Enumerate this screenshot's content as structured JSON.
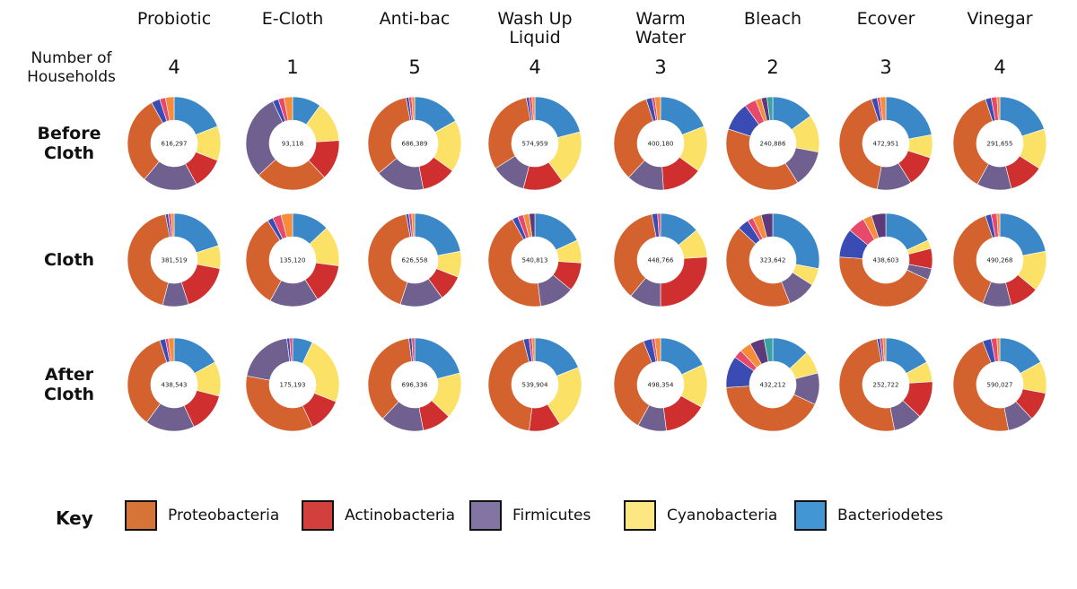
{
  "figure": {
    "households_label": "Number of Households",
    "key_title": "Key"
  },
  "colors": {
    "Proteobacteria": "#d4622f",
    "Actinobacteria": "#cf2f2f",
    "Firmicutes": "#6f6090",
    "Cyanobacteria": "#fce167",
    "Bacteriodetes": "#3b88c9",
    "other": [
      "#3a4bb3",
      "#e8486a",
      "#f48c3a",
      "#5e3a7a",
      "#3aa3a0",
      "#9a9a9a",
      "#3c3c7a",
      "#c96f86"
    ]
  },
  "key": [
    {
      "label": "Proteobacteria",
      "color": "#d67337"
    },
    {
      "label": "Actinobacteria",
      "color": "#d1403c"
    },
    {
      "label": "Firmicutes",
      "color": "#8375a3"
    },
    {
      "label": "Cyanobacteria",
      "color": "#fce783"
    },
    {
      "label": "Bacteriodetes",
      "color": "#4296d3"
    }
  ],
  "chart_data": {
    "type": "pie",
    "columns": [
      {
        "name": "Probiotic",
        "households": "4"
      },
      {
        "name": "E-Cloth",
        "households": "1"
      },
      {
        "name": "Anti-bac",
        "households": "5"
      },
      {
        "name": "Wash Up Liquid",
        "households": "4"
      },
      {
        "name": "Warm Water",
        "households": "3"
      },
      {
        "name": "Bleach",
        "households": "2"
      },
      {
        "name": "Ecover",
        "households": "3"
      },
      {
        "name": "Vinegar",
        "households": "4"
      }
    ],
    "rows": [
      "Before Cloth",
      "Cloth",
      "After Cloth"
    ],
    "order": [
      "Bacteriodetes",
      "Cyanobacteria",
      "Actinobacteria",
      "Firmicutes",
      "Proteobacteria"
    ],
    "donuts": [
      [
        {
          "total": "616,297",
          "Bacteriodetes": 19,
          "Cyanobacteria": 12,
          "Actinobacteria": 11,
          "Firmicutes": 19,
          "Proteobacteria": 31,
          "other": [
            3,
            2,
            3
          ]
        },
        {
          "total": "93,118",
          "Bacteriodetes": 10,
          "Cyanobacteria": 14,
          "Actinobacteria": 14,
          "Firmicutes": 0,
          "Proteobacteria": 25,
          "other": [],
          "firmicutes_after": 30,
          "tail": [
            2,
            2,
            3
          ]
        },
        {
          "total": "686,389",
          "Bacteriodetes": 17,
          "Cyanobacteria": 18,
          "Actinobacteria": 12,
          "Firmicutes": 17,
          "Proteobacteria": 33,
          "other": [
            1,
            1,
            1
          ]
        },
        {
          "total": "574,959",
          "Bacteriodetes": 21,
          "Cyanobacteria": 19,
          "Actinobacteria": 14,
          "Firmicutes": 12,
          "Proteobacteria": 31,
          "other": [
            1,
            1,
            1
          ]
        },
        {
          "total": "400,180",
          "Bacteriodetes": 19,
          "Cyanobacteria": 16,
          "Actinobacteria": 14,
          "Firmicutes": 13,
          "Proteobacteria": 33,
          "other": [
            2,
            1,
            2
          ]
        },
        {
          "total": "240,886",
          "Bacteriodetes": 15,
          "Cyanobacteria": 13,
          "Actinobacteria": 0,
          "Firmicutes": 13,
          "Proteobacteria": 39,
          "other": [
            10,
            4,
            2,
            2,
            2
          ]
        },
        {
          "total": "472,951",
          "Bacteriodetes": 22,
          "Cyanobacteria": 8,
          "Actinobacteria": 11,
          "Firmicutes": 12,
          "Proteobacteria": 42,
          "other": [
            2,
            1,
            2
          ]
        },
        {
          "total": "291,655",
          "Bacteriodetes": 20,
          "Cyanobacteria": 14,
          "Actinobacteria": 12,
          "Firmicutes": 12,
          "Proteobacteria": 37,
          "other": [
            2,
            2,
            1
          ]
        }
      ],
      [
        {
          "total": "381,519",
          "Bacteriodetes": 20,
          "Cyanobacteria": 8,
          "Actinobacteria": 17,
          "Firmicutes": 9,
          "Proteobacteria": 43,
          "other": [
            1,
            1,
            1
          ]
        },
        {
          "total": "135,120",
          "Bacteriodetes": 13,
          "Cyanobacteria": 14,
          "Actinobacteria": 14,
          "Firmicutes": 17,
          "Proteobacteria": 33,
          "other": [
            2,
            3,
            4
          ]
        },
        {
          "total": "626,558",
          "Bacteriodetes": 22,
          "Cyanobacteria": 9,
          "Actinobacteria": 9,
          "Firmicutes": 15,
          "Proteobacteria": 42,
          "other": [
            1,
            1,
            1
          ]
        },
        {
          "total": "540,813",
          "Bacteriodetes": 18,
          "Cyanobacteria": 8,
          "Actinobacteria": 10,
          "Firmicutes": 12,
          "Proteobacteria": 44,
          "other": [
            2,
            2,
            2,
            2
          ]
        },
        {
          "total": "448,766",
          "Bacteriodetes": 14,
          "Cyanobacteria": 10,
          "Actinobacteria": 26,
          "Firmicutes": 11,
          "Proteobacteria": 36,
          "other": [
            2,
            1
          ]
        },
        {
          "total": "323,642",
          "Bacteriodetes": 28,
          "Cyanobacteria": 6,
          "Actinobacteria": 0,
          "Firmicutes": 10,
          "Proteobacteria": 43,
          "other": [
            4,
            2,
            3,
            4
          ]
        },
        {
          "total": "438,603",
          "Bacteriodetes": 18,
          "Cyanobacteria": 3,
          "Actinobacteria": 7,
          "Firmicutes": 4,
          "Proteobacteria": 44,
          "other": [
            10,
            6,
            3,
            5
          ]
        },
        {
          "total": "490,268",
          "Bacteriodetes": 22,
          "Cyanobacteria": 14,
          "Actinobacteria": 10,
          "Firmicutes": 10,
          "Proteobacteria": 39,
          "other": [
            2,
            2,
            1
          ]
        }
      ],
      [
        {
          "total": "438,543",
          "Bacteriodetes": 17,
          "Cyanobacteria": 12,
          "Actinobacteria": 14,
          "Firmicutes": 17,
          "Proteobacteria": 35,
          "other": [
            2,
            1,
            2
          ]
        },
        {
          "total": "175,193",
          "Bacteriodetes": 7,
          "Cyanobacteria": 24,
          "Actinobacteria": 12,
          "Firmicutes": 0,
          "Proteobacteria": 35,
          "other": [],
          "firmicutes_after": 20,
          "tail": [
            1,
            1
          ]
        },
        {
          "total": "696,336",
          "Bacteriodetes": 21,
          "Cyanobacteria": 16,
          "Actinobacteria": 10,
          "Firmicutes": 15,
          "Proteobacteria": 36,
          "other": [
            1,
            1
          ]
        },
        {
          "total": "539,904",
          "Bacteriodetes": 19,
          "Cyanobacteria": 22,
          "Actinobacteria": 11,
          "Firmicutes": 0,
          "Proteobacteria": 44,
          "other": [
            2,
            1,
            1
          ]
        },
        {
          "total": "498,354",
          "Bacteriodetes": 18,
          "Cyanobacteria": 15,
          "Actinobacteria": 15,
          "Firmicutes": 10,
          "Proteobacteria": 36,
          "other": [
            3,
            1,
            2
          ]
        },
        {
          "total": "432,212",
          "Bacteriodetes": 13,
          "Cyanobacteria": 8,
          "Actinobacteria": 0,
          "Firmicutes": 11,
          "Proteobacteria": 42,
          "other": [
            11,
            3,
            4,
            5,
            3
          ]
        },
        {
          "total": "252,722",
          "Bacteriodetes": 17,
          "Cyanobacteria": 7,
          "Actinobacteria": 13,
          "Firmicutes": 10,
          "Proteobacteria": 50,
          "other": [
            1,
            1,
            1
          ]
        },
        {
          "total": "590,027",
          "Bacteriodetes": 17,
          "Cyanobacteria": 11,
          "Actinobacteria": 10,
          "Firmicutes": 9,
          "Proteobacteria": 47,
          "other": [
            3,
            2,
            1
          ]
        }
      ]
    ]
  }
}
